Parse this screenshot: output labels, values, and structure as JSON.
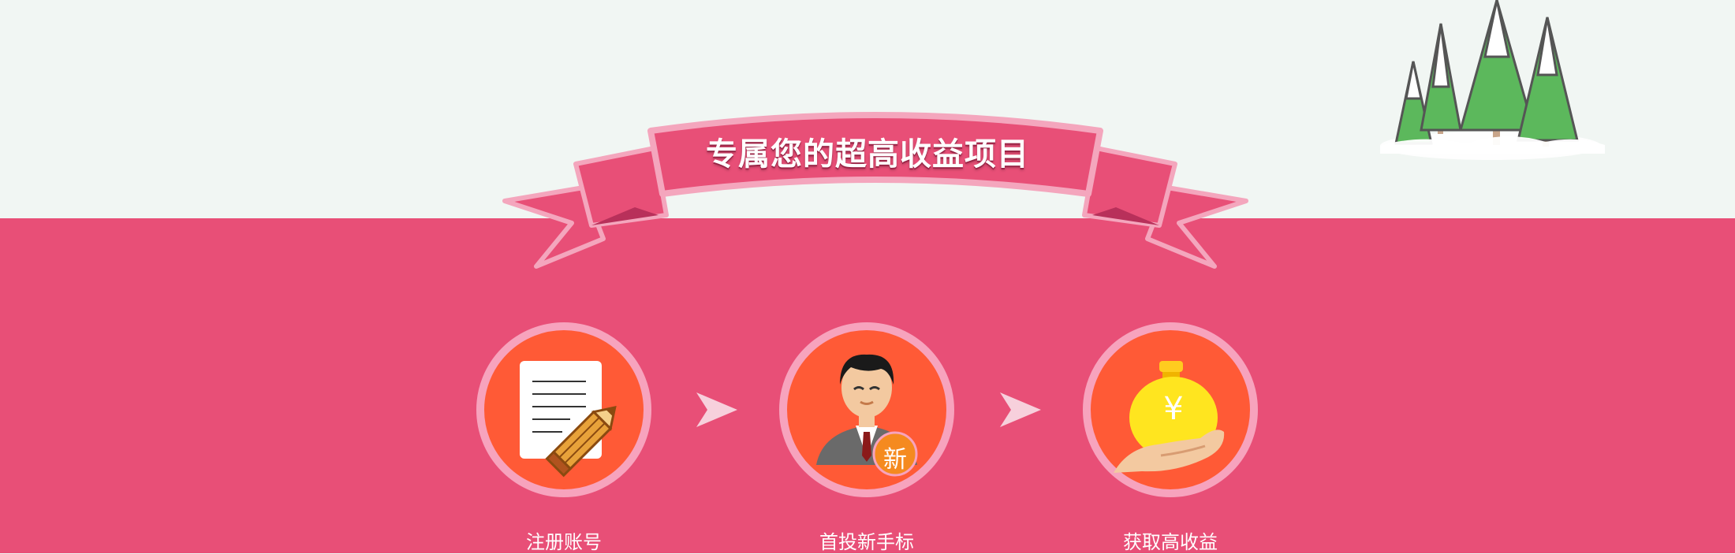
{
  "banner": {
    "title": "专属您的超高收益项目"
  },
  "steps": [
    {
      "label": "注册账号",
      "icon": "document-pencil-icon"
    },
    {
      "label": "首投新手标",
      "icon": "businessman-icon",
      "badge": "新"
    },
    {
      "label": "获取高收益",
      "icon": "money-bag-icon",
      "symbol": "¥"
    }
  ],
  "colors": {
    "background_top": "#f1f6f3",
    "background_bottom": "#e84f77",
    "ribbon": "#e84f77",
    "ribbon_border": "#f4a6bd",
    "circle_fill": "#ff5a36",
    "circle_ring": "#f7a3bd",
    "arrow": "#f7d0dc"
  }
}
